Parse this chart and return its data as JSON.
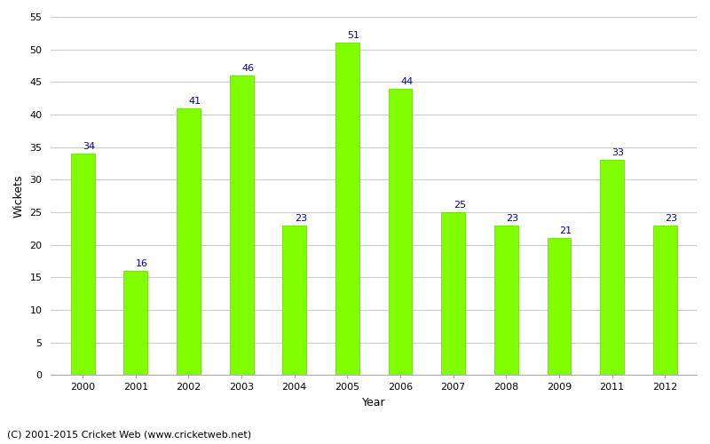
{
  "years": [
    "2000",
    "2001",
    "2002",
    "2003",
    "2004",
    "2005",
    "2006",
    "2007",
    "2008",
    "2009",
    "2011",
    "2012"
  ],
  "values": [
    34,
    16,
    41,
    46,
    23,
    51,
    44,
    25,
    23,
    21,
    33,
    23
  ],
  "bar_color": "#7fff00",
  "bar_edge_color": "#66cc00",
  "label_color": "#00008b",
  "xlabel": "Year",
  "ylabel": "Wickets",
  "ylim": [
    0,
    55
  ],
  "yticks": [
    0,
    5,
    10,
    15,
    20,
    25,
    30,
    35,
    40,
    45,
    50,
    55
  ],
  "background_color": "#ffffff",
  "grid_color": "#cccccc",
  "label_fontsize": 8,
  "axis_label_fontsize": 9,
  "tick_fontsize": 8,
  "bar_width": 0.45,
  "footer_text": "(C) 2001-2015 Cricket Web (www.cricketweb.net)",
  "footer_fontsize": 8
}
